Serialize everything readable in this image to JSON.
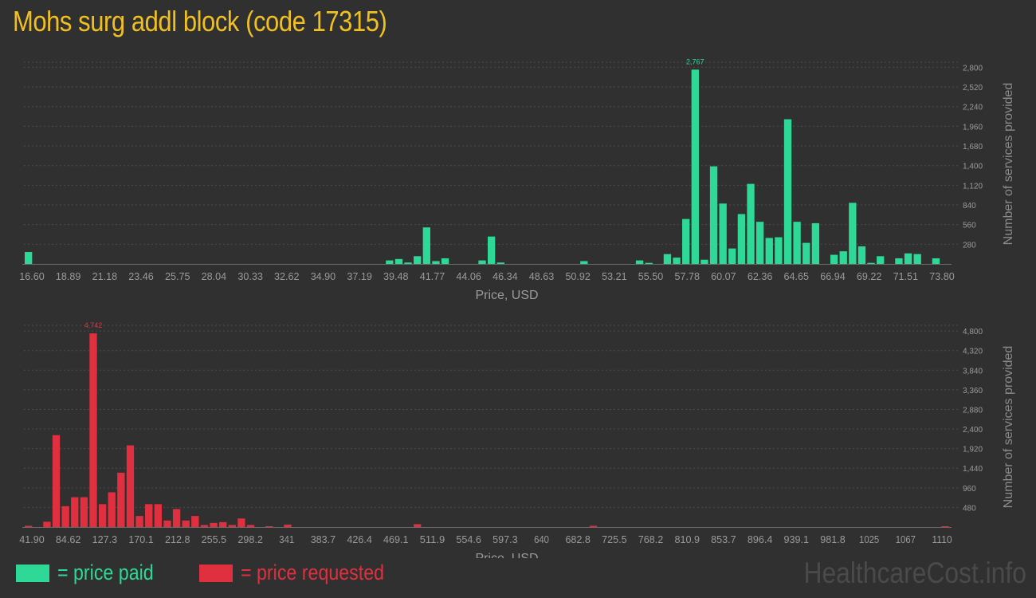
{
  "title": "Mohs surg addl block (code 17315)",
  "colors": {
    "paid": "#2ed896",
    "requested": "#e0303f",
    "title": "#f0c023",
    "background": "#303030"
  },
  "legend": {
    "paid_label": "= price paid",
    "requested_label": "= price requested"
  },
  "watermark": "HealthcareCost.info",
  "chart_data": [
    {
      "type": "bar",
      "name": "price paid",
      "xlabel": "Price, USD",
      "ylabel": "Number of services provided",
      "x_tick_labels": [
        "16.60",
        "18.89",
        "21.18",
        "23.46",
        "25.75",
        "28.04",
        "30.33",
        "32.62",
        "34.90",
        "37.19",
        "39.48",
        "41.77",
        "44.06",
        "46.34",
        "48.63",
        "50.92",
        "53.21",
        "55.50",
        "57.78",
        "60.07",
        "62.36",
        "64.65",
        "66.94",
        "69.22",
        "71.51",
        "73.80"
      ],
      "y_tick_labels": [
        "280",
        "560",
        "840",
        "1,120",
        "1,400",
        "1,680",
        "1,960",
        "2,240",
        "2,520",
        "2,800"
      ],
      "ylim": [
        0,
        2850
      ],
      "grid": true,
      "x_range": [
        16.6,
        73.8
      ],
      "bin_count": 100,
      "peak_label": "2,767",
      "bars": [
        {
          "bin": 0,
          "value": 170
        },
        {
          "bin": 39,
          "value": 50
        },
        {
          "bin": 40,
          "value": 70
        },
        {
          "bin": 41,
          "value": 20
        },
        {
          "bin": 42,
          "value": 110
        },
        {
          "bin": 43,
          "value": 520
        },
        {
          "bin": 44,
          "value": 40
        },
        {
          "bin": 45,
          "value": 80
        },
        {
          "bin": 49,
          "value": 50
        },
        {
          "bin": 50,
          "value": 390
        },
        {
          "bin": 51,
          "value": 20
        },
        {
          "bin": 60,
          "value": 40
        },
        {
          "bin": 66,
          "value": 50
        },
        {
          "bin": 67,
          "value": 15
        },
        {
          "bin": 69,
          "value": 140
        },
        {
          "bin": 70,
          "value": 90
        },
        {
          "bin": 71,
          "value": 640
        },
        {
          "bin": 72,
          "value": 2767
        },
        {
          "bin": 73,
          "value": 60
        },
        {
          "bin": 74,
          "value": 1390
        },
        {
          "bin": 75,
          "value": 860
        },
        {
          "bin": 76,
          "value": 220
        },
        {
          "bin": 77,
          "value": 710
        },
        {
          "bin": 78,
          "value": 1140
        },
        {
          "bin": 79,
          "value": 600
        },
        {
          "bin": 80,
          "value": 370
        },
        {
          "bin": 81,
          "value": 380
        },
        {
          "bin": 82,
          "value": 2060
        },
        {
          "bin": 83,
          "value": 600
        },
        {
          "bin": 84,
          "value": 300
        },
        {
          "bin": 85,
          "value": 580
        },
        {
          "bin": 87,
          "value": 130
        },
        {
          "bin": 88,
          "value": 180
        },
        {
          "bin": 89,
          "value": 870
        },
        {
          "bin": 90,
          "value": 250
        },
        {
          "bin": 91,
          "value": 15
        },
        {
          "bin": 92,
          "value": 110
        },
        {
          "bin": 94,
          "value": 80
        },
        {
          "bin": 95,
          "value": 150
        },
        {
          "bin": 96,
          "value": 140
        },
        {
          "bin": 98,
          "value": 80
        }
      ]
    },
    {
      "type": "bar",
      "name": "price requested",
      "xlabel": "Price, USD",
      "ylabel": "Number of services provided",
      "x_tick_labels": [
        "41.90",
        "84.62",
        "127.3",
        "170.1",
        "212.8",
        "255.5",
        "298.2",
        "341",
        "383.7",
        "426.4",
        "469.1",
        "511.9",
        "554.6",
        "597.3",
        "640",
        "682.8",
        "725.5",
        "768.2",
        "810.9",
        "853.7",
        "896.4",
        "939.1",
        "981.8",
        "1025",
        "1067",
        "1110"
      ],
      "y_tick_labels": [
        "480",
        "960",
        "1,440",
        "1,920",
        "2,400",
        "2,880",
        "3,360",
        "3,840",
        "4,320",
        "4,800"
      ],
      "ylim": [
        0,
        4900
      ],
      "grid": true,
      "x_range": [
        41.9,
        1110
      ],
      "bin_count": 100,
      "peak_label": "4,742",
      "bars": [
        {
          "bin": 0,
          "value": 30
        },
        {
          "bin": 2,
          "value": 130
        },
        {
          "bin": 3,
          "value": 2250
        },
        {
          "bin": 4,
          "value": 510
        },
        {
          "bin": 5,
          "value": 730
        },
        {
          "bin": 6,
          "value": 730
        },
        {
          "bin": 7,
          "value": 4742
        },
        {
          "bin": 8,
          "value": 560
        },
        {
          "bin": 9,
          "value": 850
        },
        {
          "bin": 10,
          "value": 1330
        },
        {
          "bin": 11,
          "value": 2000
        },
        {
          "bin": 12,
          "value": 270
        },
        {
          "bin": 13,
          "value": 560
        },
        {
          "bin": 14,
          "value": 560
        },
        {
          "bin": 15,
          "value": 160
        },
        {
          "bin": 16,
          "value": 440
        },
        {
          "bin": 17,
          "value": 160
        },
        {
          "bin": 18,
          "value": 270
        },
        {
          "bin": 19,
          "value": 50
        },
        {
          "bin": 20,
          "value": 100
        },
        {
          "bin": 21,
          "value": 120
        },
        {
          "bin": 22,
          "value": 50
        },
        {
          "bin": 23,
          "value": 210
        },
        {
          "bin": 24,
          "value": 50
        },
        {
          "bin": 26,
          "value": 20
        },
        {
          "bin": 28,
          "value": 60
        },
        {
          "bin": 42,
          "value": 70
        },
        {
          "bin": 61,
          "value": 30
        },
        {
          "bin": 99,
          "value": 20
        }
      ]
    }
  ]
}
